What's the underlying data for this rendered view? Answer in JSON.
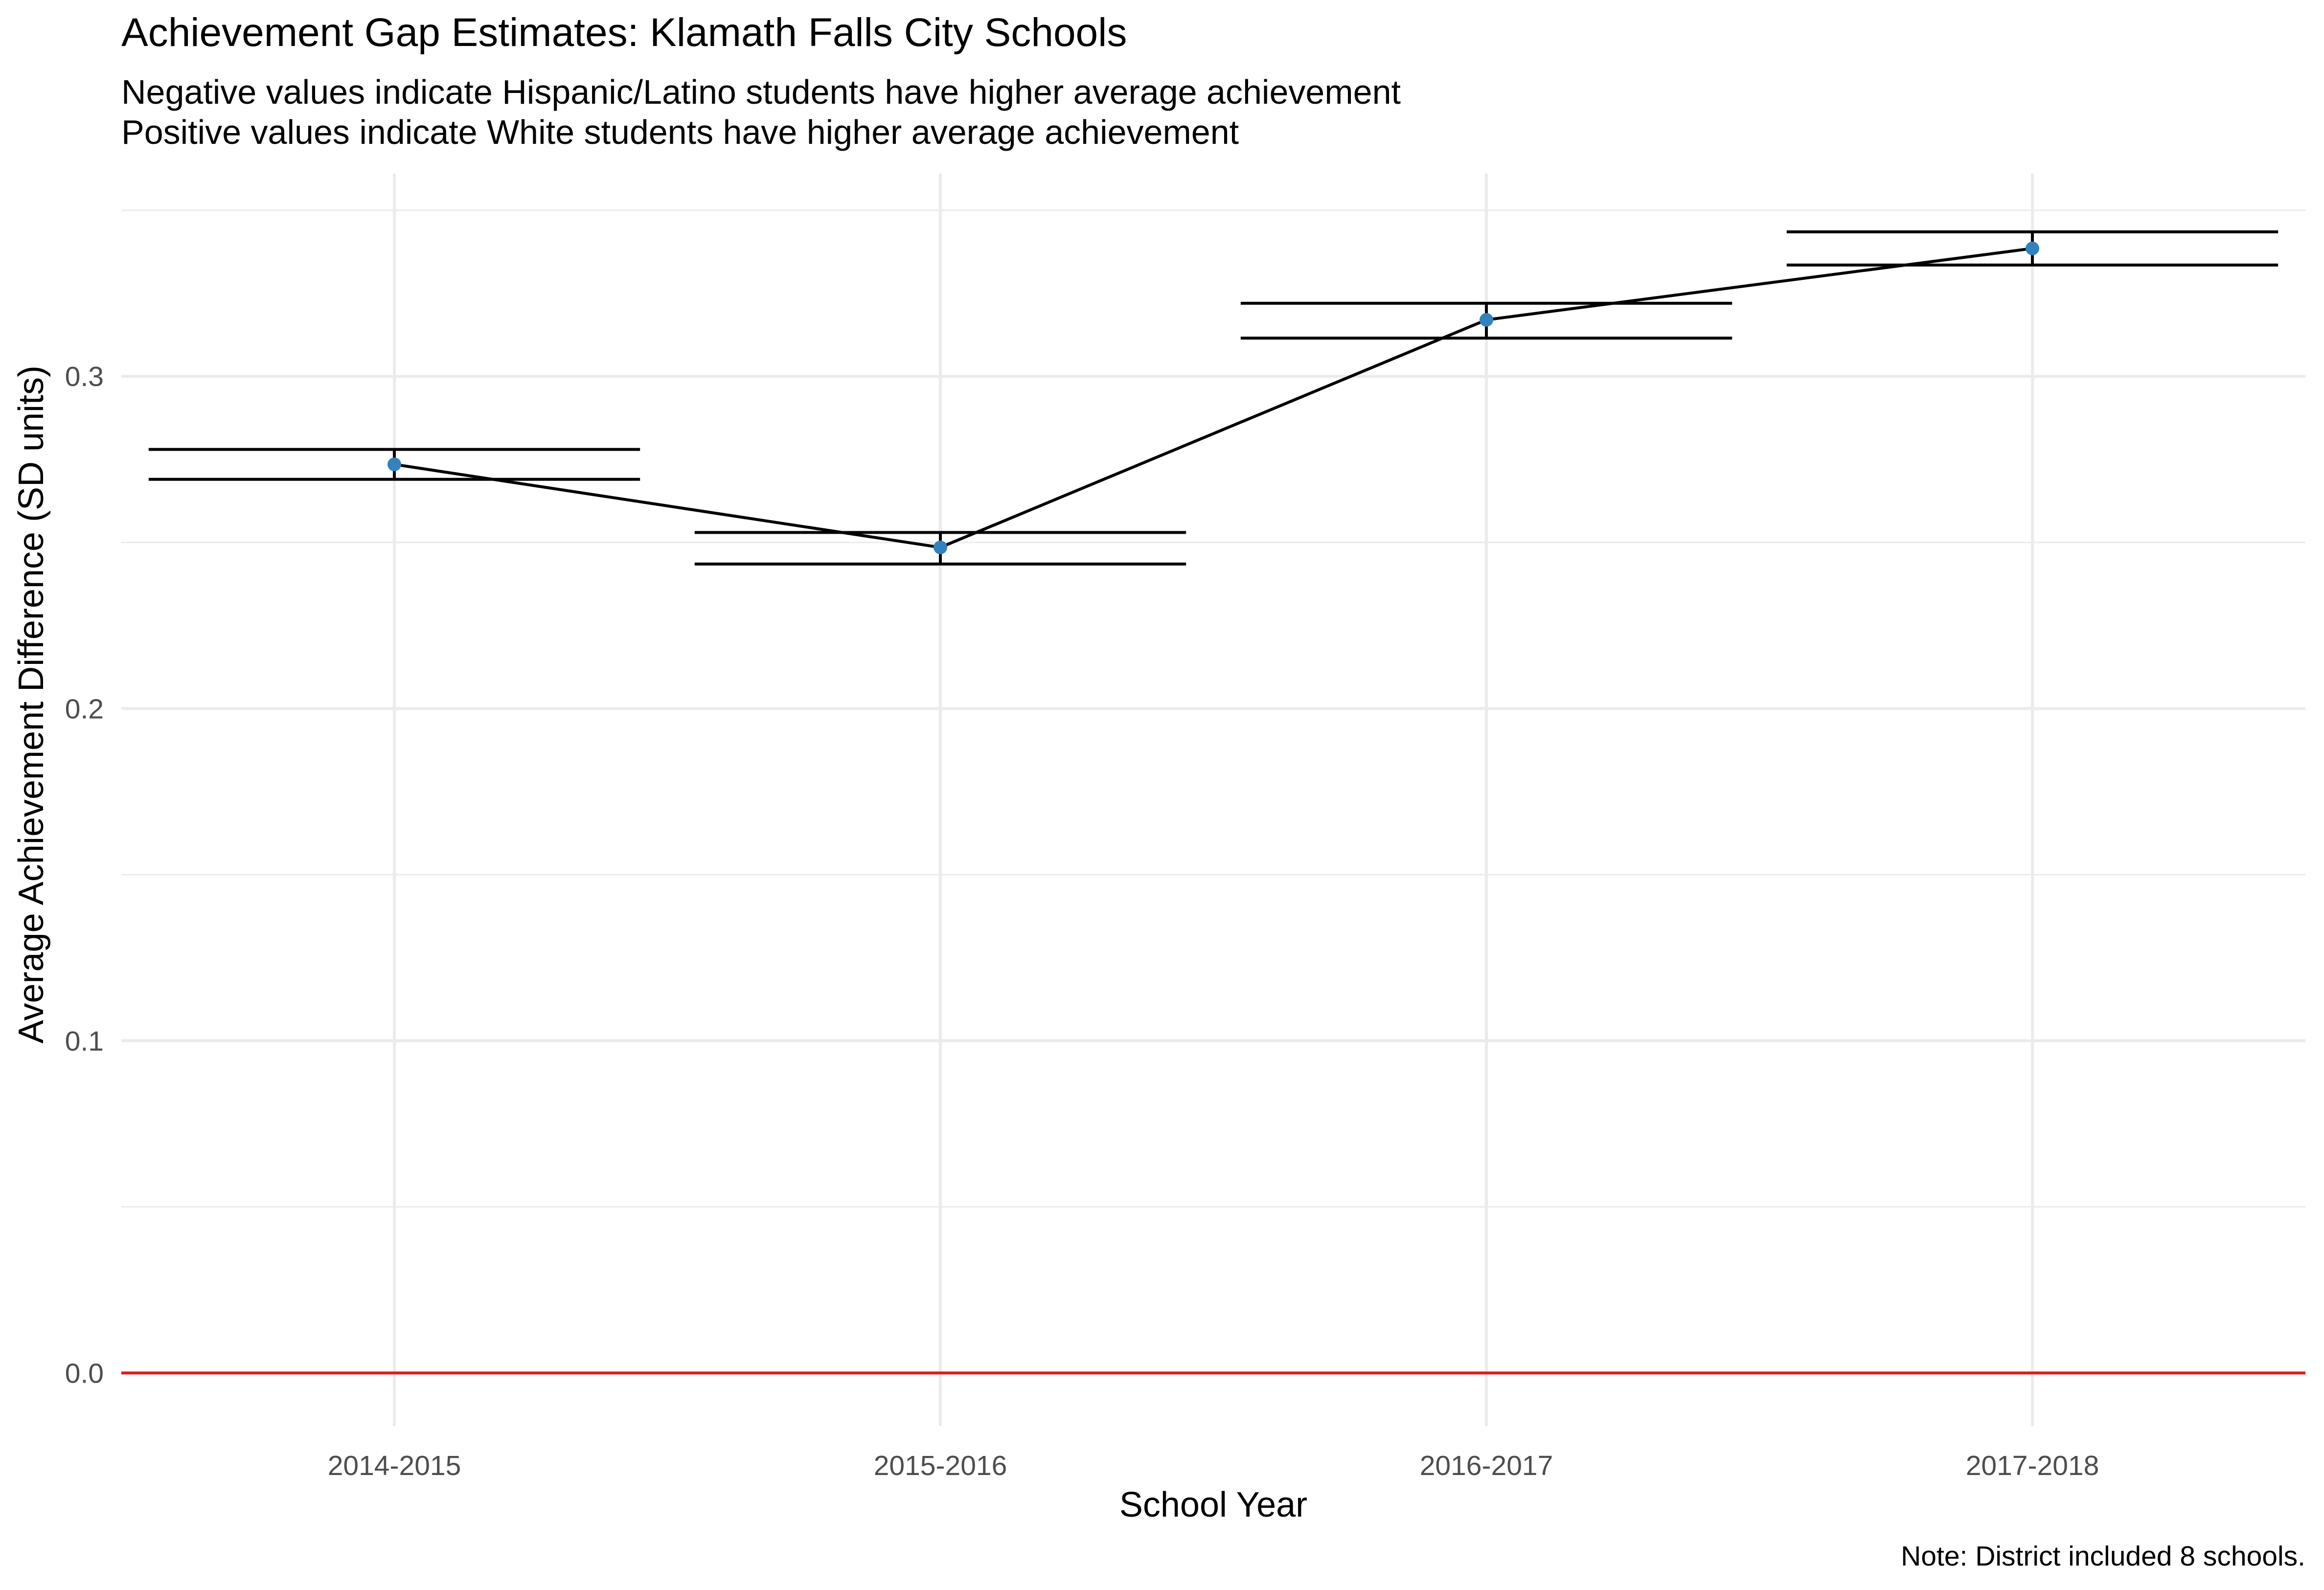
{
  "chart_data": {
    "type": "line",
    "title": "Achievement Gap Estimates: Klamath Falls City Schools",
    "subtitle_lines": [
      "Negative values indicate Hispanic/Latino students have higher average achievement",
      "Positive values indicate White students have higher average achievement"
    ],
    "xlabel": "School Year",
    "ylabel": "Average Achievement Difference (SD units)",
    "caption": "Note: District included 8 schools.",
    "categories": [
      "2014-2015",
      "2015-2016",
      "2016-2017",
      "2017-2018"
    ],
    "series": [
      {
        "values": [
          0.2735,
          0.2485,
          0.317,
          0.3385
        ],
        "lower": [
          0.269,
          0.2435,
          0.3115,
          0.3335
        ],
        "upper": [
          0.278,
          0.253,
          0.322,
          0.3435
        ]
      }
    ],
    "ylim": [
      -0.016,
      0.361
    ],
    "yticks": [
      {
        "value": 0.0,
        "label": "0.0"
      },
      {
        "value": 0.1,
        "label": "0.1"
      },
      {
        "value": 0.2,
        "label": "0.2"
      },
      {
        "value": 0.3,
        "label": "0.3"
      }
    ],
    "reference_line": {
      "value": 0.0,
      "color": "#e31a1c"
    },
    "grid": true,
    "colors": {
      "point": "#3182bd",
      "line": "#000000",
      "errorbar": "#000000",
      "grid": "#ebebeb",
      "tick_text": "#4d4d4d"
    }
  }
}
